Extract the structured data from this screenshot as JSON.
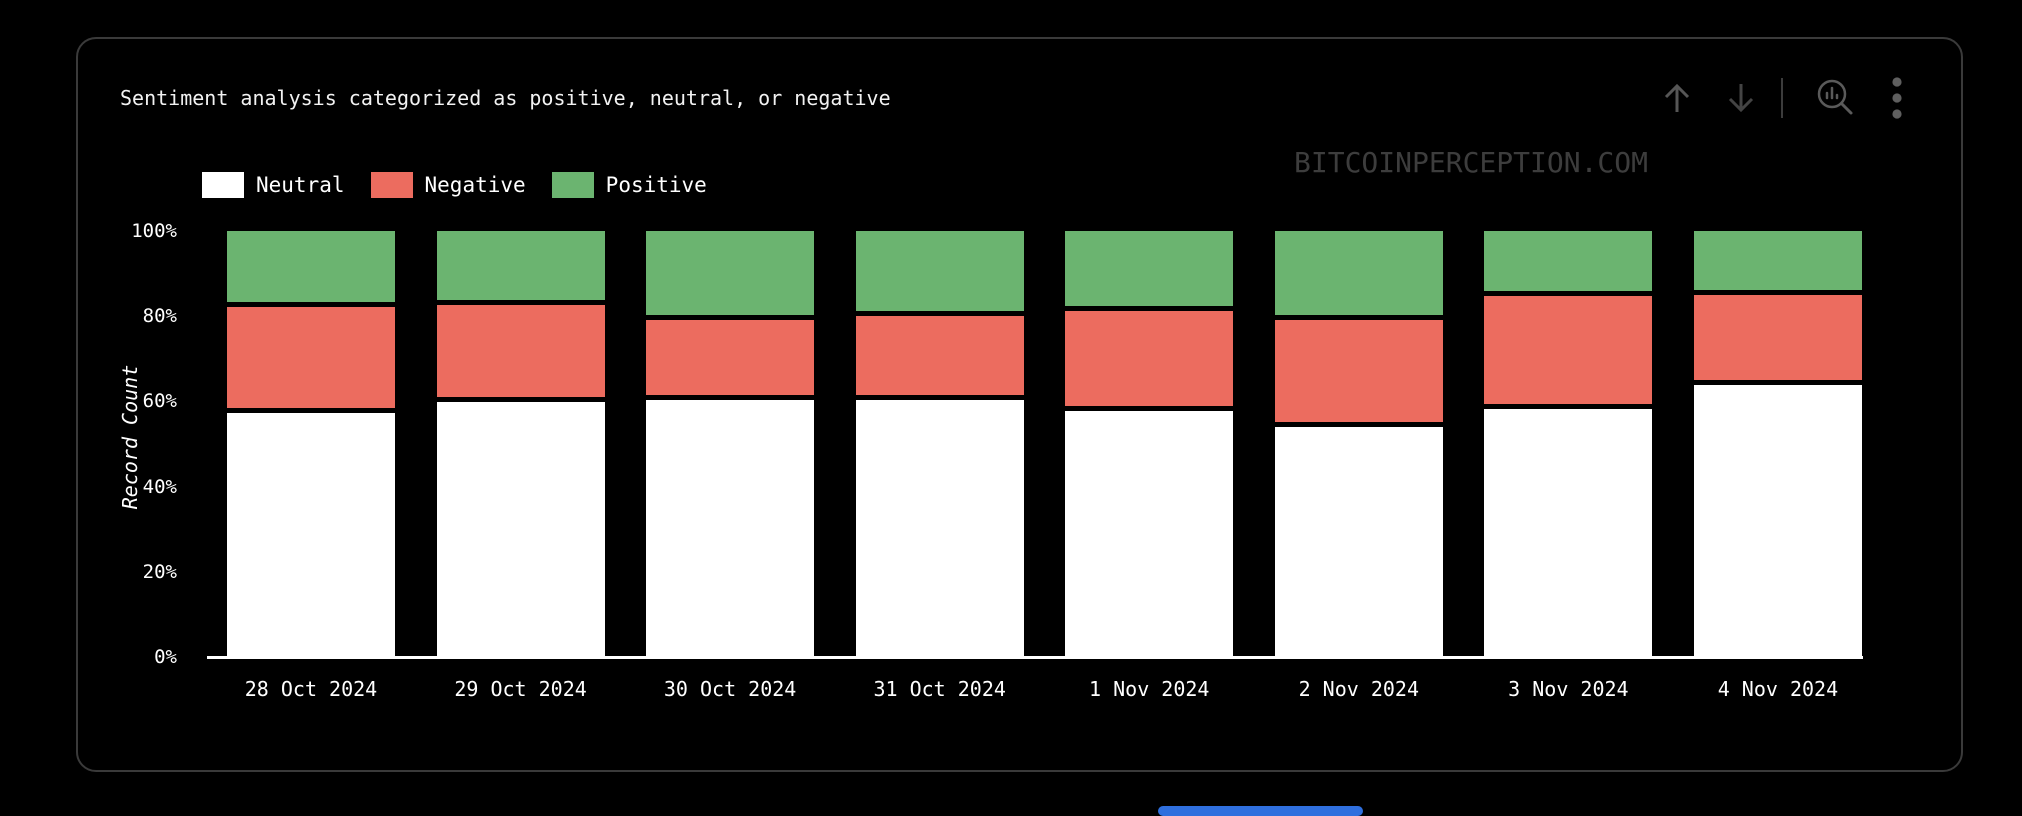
{
  "header": {
    "title": "Sentiment analysis categorized as positive, neutral, or negative",
    "toolbar_icons": [
      "arrow-up",
      "arrow-down",
      "zoom-chart",
      "more-options"
    ]
  },
  "watermark": "BITCOINPERCEPTION.COM",
  "colors": {
    "background": "#000000",
    "card_border": "#3a3a3a",
    "axis": "#ffffff",
    "text": "#ffffff",
    "icon": "#565656",
    "icon_dim": "#444444",
    "watermark": "#3d3d3d",
    "neutral": "#ffffff",
    "negative": "#ec6c5f",
    "positive": "#6bb470"
  },
  "legend": [
    {
      "label": "Neutral",
      "color": "#ffffff"
    },
    {
      "label": "Negative",
      "color": "#ec6c5f"
    },
    {
      "label": "Positive",
      "color": "#6bb470"
    }
  ],
  "chart_data": {
    "type": "bar",
    "stacked": true,
    "title": "Sentiment analysis categorized as positive, neutral, or negative",
    "categories": [
      "28 Oct 2024",
      "29 Oct 2024",
      "30 Oct 2024",
      "31 Oct 2024",
      "1 Nov 2024",
      "2 Nov 2024",
      "3 Nov 2024",
      "4 Nov 2024"
    ],
    "series": [
      {
        "name": "Neutral",
        "color": "#ffffff",
        "values": [
          58.5,
          61.0,
          61.4,
          61.4,
          59.0,
          55.2,
          59.3,
          65.1
        ]
      },
      {
        "name": "Negative",
        "color": "#ec6c5f",
        "values": [
          24.8,
          22.7,
          18.8,
          19.8,
          23.4,
          25.0,
          26.5,
          21.0
        ]
      },
      {
        "name": "Positive",
        "color": "#6bb470",
        "values": [
          16.7,
          16.3,
          19.8,
          18.8,
          17.6,
          19.8,
          14.2,
          13.9
        ]
      }
    ],
    "xlabel": "",
    "ylabel": "Record Count",
    "ylim": [
      0,
      100
    ],
    "yticks": [
      0,
      20,
      40,
      60,
      80,
      100
    ],
    "ytick_suffix": "%",
    "grid": false,
    "legend_position": "top-left"
  }
}
